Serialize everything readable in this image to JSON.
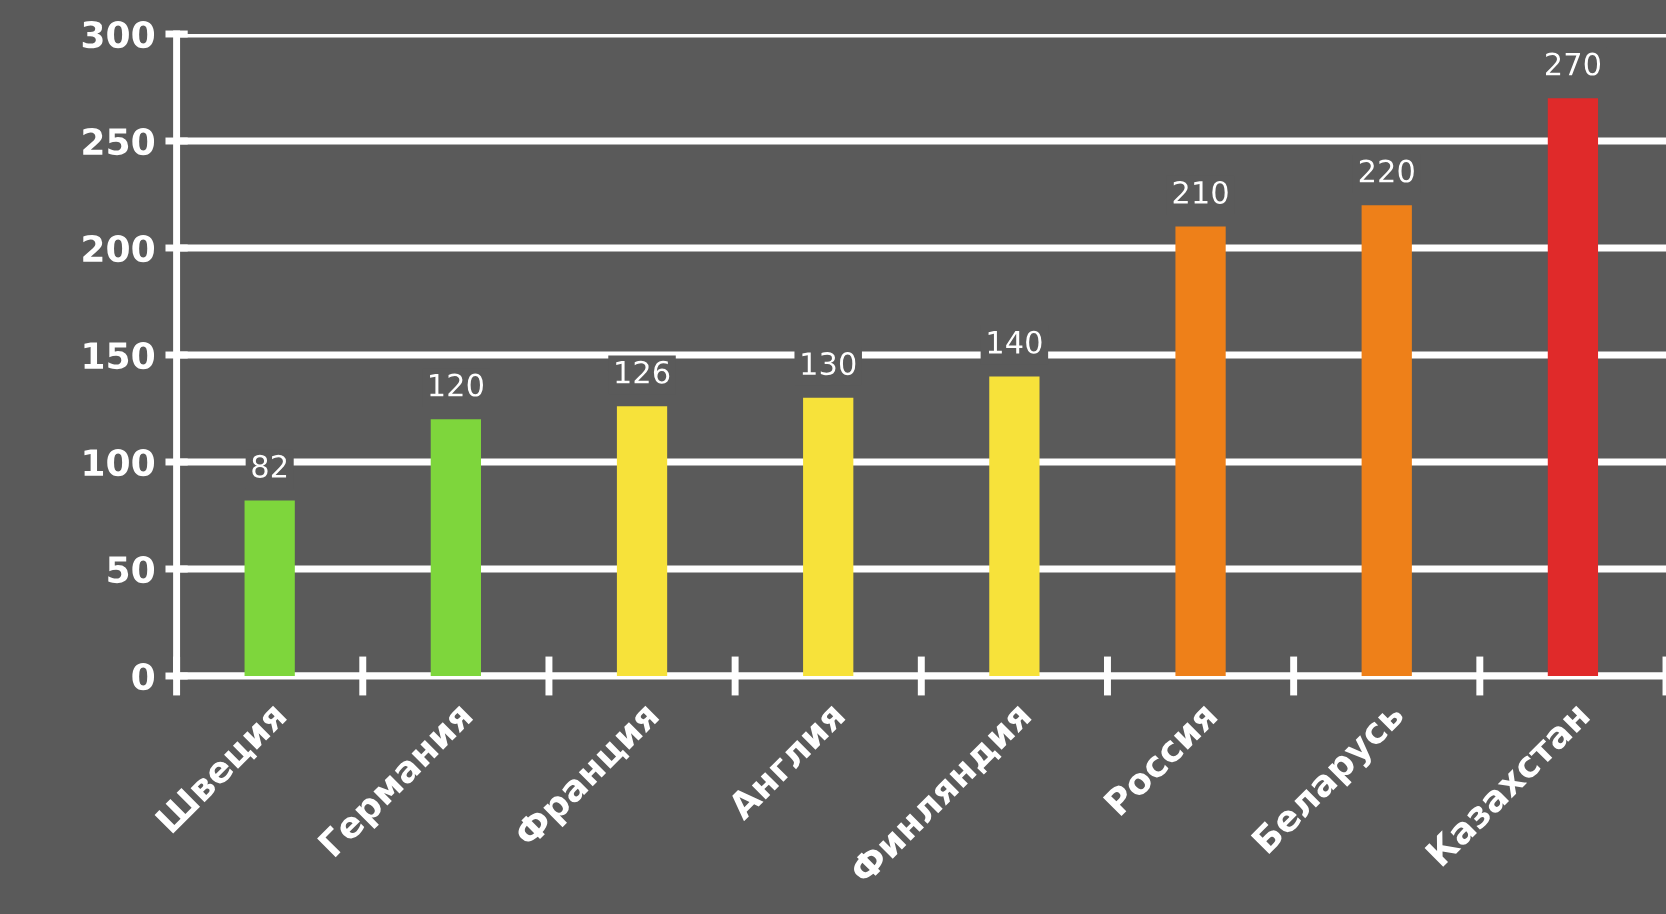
{
  "chart_data": {
    "type": "bar",
    "categories": [
      "Швеция",
      "Германия",
      "Франция",
      "Англия",
      "Финляндия",
      "Россия",
      "Беларусь",
      "Казахстан"
    ],
    "values": [
      82,
      120,
      126,
      130,
      140,
      210,
      220,
      270
    ],
    "colors": [
      "#7ed63c",
      "#7ed63c",
      "#f7e23a",
      "#f7e23a",
      "#f7e23a",
      "#ee8019",
      "#ee8019",
      "#e02a2a"
    ],
    "ylim": [
      0,
      300
    ],
    "yticks": [
      0,
      50,
      100,
      150,
      200,
      250,
      300
    ],
    "grid": "y",
    "data_labels": true
  }
}
